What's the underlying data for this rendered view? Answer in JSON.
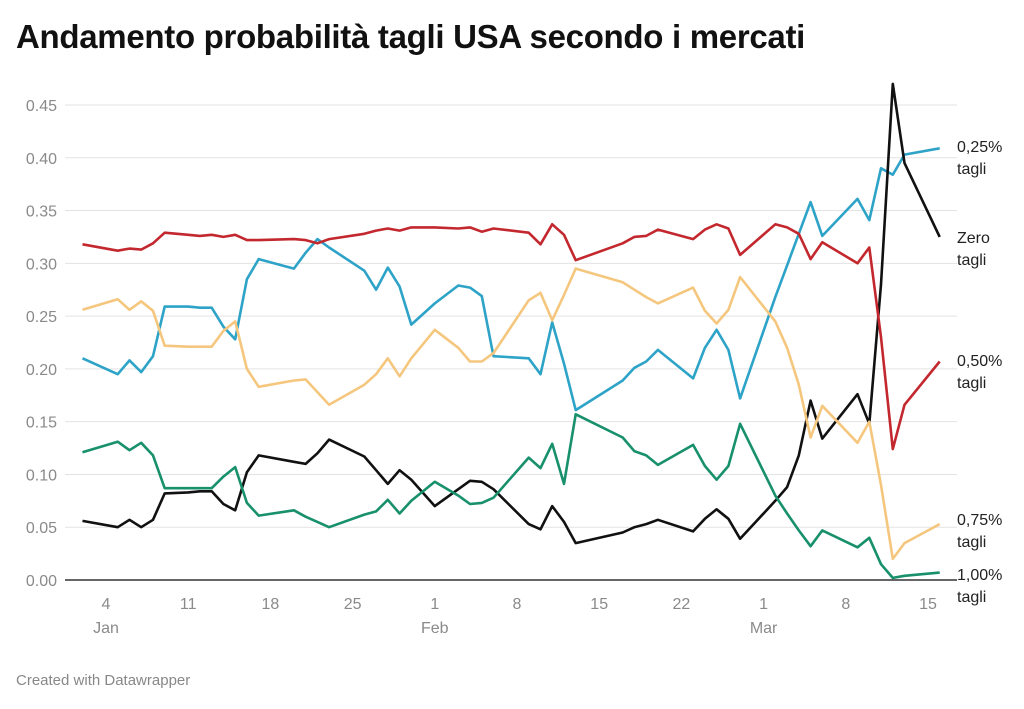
{
  "title": "Andamento probabilità tagli USA secondo i mercati",
  "footer": "Created with Datawrapper",
  "chart_data": {
    "type": "line",
    "title": "Andamento probabilità tagli USA secondo i mercati",
    "xlabel": "",
    "ylabel": "",
    "ylim": [
      0,
      0.45
    ],
    "yticks": [
      "0.00",
      "0.05",
      "0.10",
      "0.15",
      "0.20",
      "0.25",
      "0.30",
      "0.35",
      "0.40",
      "0.45"
    ],
    "grid": true,
    "legend": "direct labels right",
    "xticks": [
      {
        "date": "2025-01-04",
        "label": "4",
        "month": "Jan"
      },
      {
        "date": "2025-01-11",
        "label": "11",
        "month": ""
      },
      {
        "date": "2025-01-18",
        "label": "18",
        "month": ""
      },
      {
        "date": "2025-01-25",
        "label": "25",
        "month": ""
      },
      {
        "date": "2025-02-01",
        "label": "1",
        "month": "Feb"
      },
      {
        "date": "2025-02-08",
        "label": "8",
        "month": ""
      },
      {
        "date": "2025-02-15",
        "label": "15",
        "month": ""
      },
      {
        "date": "2025-02-22",
        "label": "22",
        "month": ""
      },
      {
        "date": "2025-03-01",
        "label": "1",
        "month": "Mar"
      },
      {
        "date": "2025-03-08",
        "label": "8",
        "month": ""
      },
      {
        "date": "2025-03-15",
        "label": "15",
        "month": ""
      }
    ],
    "x": [
      "2025-01-02",
      "2025-01-05",
      "2025-01-06",
      "2025-01-07",
      "2025-01-08",
      "2025-01-09",
      "2025-01-11",
      "2025-01-12",
      "2025-01-13",
      "2025-01-14",
      "2025-01-15",
      "2025-01-16",
      "2025-01-17",
      "2025-01-20",
      "2025-01-21",
      "2025-01-22",
      "2025-01-23",
      "2025-01-26",
      "2025-01-27",
      "2025-01-28",
      "2025-01-29",
      "2025-01-30",
      "2025-02-01",
      "2025-02-03",
      "2025-02-04",
      "2025-02-05",
      "2025-02-06",
      "2025-02-09",
      "2025-02-10",
      "2025-02-11",
      "2025-02-12",
      "2025-02-13",
      "2025-02-17",
      "2025-02-18",
      "2025-02-19",
      "2025-02-20",
      "2025-02-23",
      "2025-02-24",
      "2025-02-25",
      "2025-02-26",
      "2025-02-27",
      "2025-03-02",
      "2025-03-03",
      "2025-03-04",
      "2025-03-05",
      "2025-03-06",
      "2025-03-09",
      "2025-03-10",
      "2025-03-11",
      "2025-03-12",
      "2025-03-13",
      "2025-03-16"
    ],
    "series": [
      {
        "name": "0,25% tagli",
        "color": "#2ea3c8",
        "values": [
          0.21,
          0.195,
          0.208,
          0.197,
          0.212,
          0.259,
          0.259,
          0.258,
          0.258,
          0.24,
          0.228,
          0.285,
          0.304,
          0.295,
          0.31,
          0.323,
          0.315,
          0.293,
          0.275,
          0.296,
          0.278,
          0.242,
          0.262,
          0.279,
          0.277,
          0.269,
          0.212,
          0.21,
          0.195,
          0.244,
          0.205,
          0.161,
          0.189,
          0.201,
          0.207,
          0.218,
          0.191,
          0.22,
          0.237,
          0.218,
          0.172,
          0.268,
          0.298,
          0.328,
          0.358,
          0.326,
          0.361,
          0.341,
          0.39,
          0.384,
          0.403,
          0.409
        ]
      },
      {
        "name": "Zero tagli",
        "color": "#111111",
        "values": [
          0.056,
          0.05,
          0.057,
          0.05,
          0.057,
          0.082,
          0.083,
          0.084,
          0.084,
          0.072,
          0.066,
          0.102,
          0.118,
          0.112,
          0.11,
          0.12,
          0.133,
          0.117,
          0.104,
          0.091,
          0.104,
          0.095,
          0.07,
          0.086,
          0.094,
          0.093,
          0.086,
          0.053,
          0.048,
          0.07,
          0.055,
          0.035,
          0.045,
          0.05,
          0.053,
          0.057,
          0.046,
          0.058,
          0.067,
          0.058,
          0.039,
          0.075,
          0.088,
          0.118,
          0.17,
          0.134,
          0.176,
          0.148,
          0.28,
          0.47,
          0.395,
          0.325
        ]
      },
      {
        "name": "0,50% tagli",
        "color": "#c3282e",
        "values": [
          0.318,
          0.312,
          0.314,
          0.313,
          0.319,
          0.329,
          0.327,
          0.326,
          0.327,
          0.325,
          0.327,
          0.322,
          0.322,
          0.323,
          0.322,
          0.319,
          0.323,
          0.328,
          0.331,
          0.333,
          0.331,
          0.334,
          0.334,
          0.333,
          0.334,
          0.33,
          0.333,
          0.329,
          0.318,
          0.337,
          0.327,
          0.303,
          0.319,
          0.325,
          0.326,
          0.332,
          0.323,
          0.332,
          0.337,
          0.333,
          0.308,
          0.337,
          0.334,
          0.328,
          0.304,
          0.32,
          0.3,
          0.315,
          0.23,
          0.124,
          0.166,
          0.207
        ]
      },
      {
        "name": "0,75% tagli",
        "color": "#f5c77e",
        "values": [
          0.256,
          0.266,
          0.256,
          0.264,
          0.255,
          0.222,
          0.221,
          0.221,
          0.221,
          0.236,
          0.245,
          0.2,
          0.183,
          0.189,
          0.19,
          0.178,
          0.166,
          0.185,
          0.195,
          0.21,
          0.193,
          0.21,
          0.237,
          0.22,
          0.207,
          0.207,
          0.215,
          0.265,
          0.272,
          0.246,
          0.27,
          0.295,
          0.282,
          0.275,
          0.268,
          0.262,
          0.277,
          0.255,
          0.243,
          0.256,
          0.287,
          0.245,
          0.22,
          0.185,
          0.135,
          0.165,
          0.13,
          0.15,
          0.09,
          0.02,
          0.035,
          0.053
        ]
      },
      {
        "name": "1,00% tagli",
        "color": "#17906b",
        "values": [
          0.121,
          0.131,
          0.123,
          0.13,
          0.118,
          0.087,
          0.087,
          0.087,
          0.087,
          0.098,
          0.107,
          0.073,
          0.061,
          0.066,
          0.06,
          0.055,
          0.05,
          0.062,
          0.065,
          0.076,
          0.063,
          0.075,
          0.093,
          0.08,
          0.072,
          0.073,
          0.078,
          0.116,
          0.106,
          0.129,
          0.091,
          0.157,
          0.135,
          0.122,
          0.118,
          0.109,
          0.128,
          0.108,
          0.095,
          0.108,
          0.148,
          0.08,
          0.063,
          0.047,
          0.032,
          0.047,
          0.031,
          0.04,
          0.015,
          0.002,
          0.004,
          0.007
        ]
      }
    ]
  },
  "labels": {
    "s025": [
      "0,25%",
      "tagli"
    ],
    "zero": [
      "Zero",
      "tagli"
    ],
    "s050": [
      "0,50%",
      "tagli"
    ],
    "s075": [
      "0,75%",
      "tagli"
    ],
    "s100": [
      "1,00%",
      "tagli"
    ]
  }
}
